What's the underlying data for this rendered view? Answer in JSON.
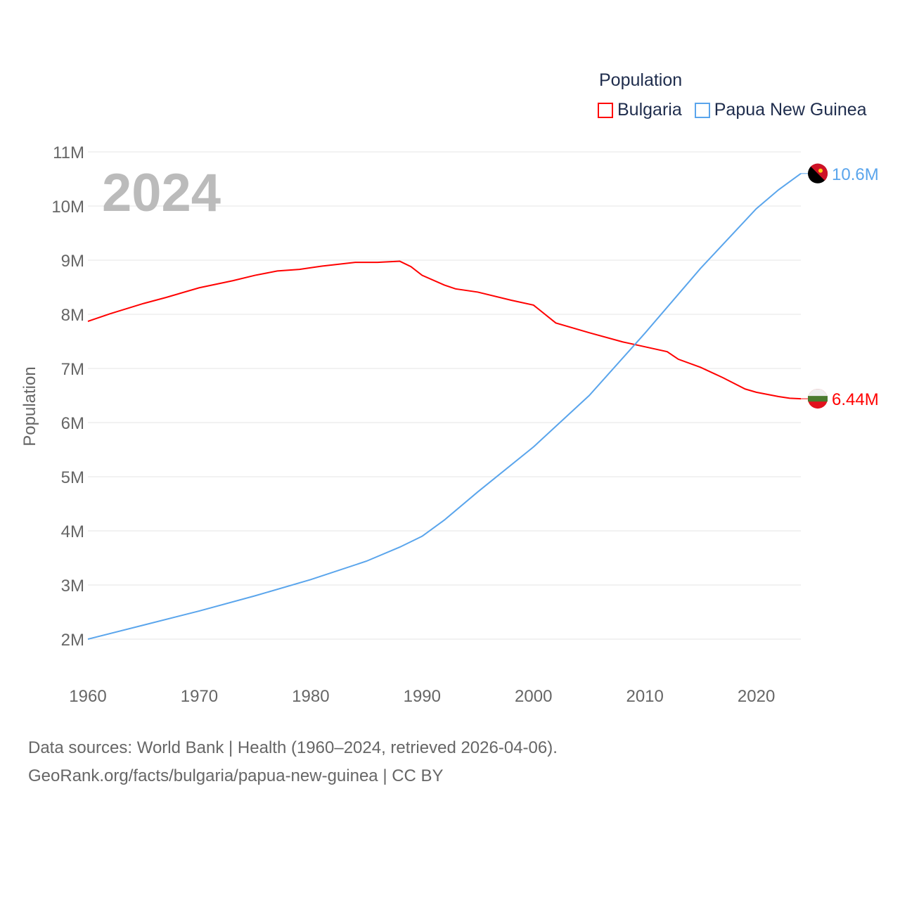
{
  "chart_data": {
    "type": "line",
    "year_label": "2024",
    "legend_title": "Population",
    "ylabel": "Population",
    "xlim": [
      1960,
      2024
    ],
    "ylim": [
      2000000,
      11000000
    ],
    "xticks": [
      1960,
      1970,
      1980,
      1990,
      2000,
      2010,
      2020
    ],
    "yticks": [
      {
        "v": 2000000,
        "label": "2M"
      },
      {
        "v": 3000000,
        "label": "3M"
      },
      {
        "v": 4000000,
        "label": "4M"
      },
      {
        "v": 5000000,
        "label": "5M"
      },
      {
        "v": 6000000,
        "label": "6M"
      },
      {
        "v": 7000000,
        "label": "7M"
      },
      {
        "v": 8000000,
        "label": "8M"
      },
      {
        "v": 9000000,
        "label": "9M"
      },
      {
        "v": 10000000,
        "label": "10M"
      },
      {
        "v": 11000000,
        "label": "11M"
      }
    ],
    "series": [
      {
        "name": "Bulgaria",
        "color": "#ff0000",
        "end_label": "6.44M",
        "x": [
          1960,
          1962,
          1965,
          1967,
          1970,
          1973,
          1975,
          1977,
          1979,
          1981,
          1984,
          1986,
          1988,
          1989,
          1990,
          1992,
          1993,
          1995,
          1998,
          2000,
          2002,
          2005,
          2008,
          2010,
          2012,
          2013,
          2015,
          2017,
          2019,
          2020,
          2022,
          2023,
          2024
        ],
        "y": [
          7.87,
          8.01,
          8.2,
          8.31,
          8.49,
          8.62,
          8.72,
          8.8,
          8.83,
          8.89,
          8.96,
          8.96,
          8.98,
          8.88,
          8.72,
          8.54,
          8.47,
          8.41,
          8.26,
          8.17,
          7.84,
          7.66,
          7.49,
          7.4,
          7.31,
          7.17,
          7.02,
          6.83,
          6.62,
          6.56,
          6.48,
          6.45,
          6.44
        ]
      },
      {
        "name": "Papua New Guinea",
        "color": "#5aa5ec",
        "end_label": "10.6M",
        "x": [
          1960,
          1965,
          1970,
          1975,
          1980,
          1985,
          1988,
          1990,
          1992,
          1995,
          2000,
          2005,
          2010,
          2015,
          2020,
          2022,
          2024
        ],
        "y": [
          2.0,
          2.26,
          2.52,
          2.8,
          3.1,
          3.44,
          3.7,
          3.9,
          4.2,
          4.72,
          5.55,
          6.5,
          7.65,
          8.85,
          9.95,
          10.3,
          10.6
        ]
      }
    ]
  },
  "footer": {
    "line1": "Data sources: World Bank | Health (1960–2024, retrieved 2026-04-06).",
    "line2": "GeoRank.org/facts/bulgaria/papua-new-guinea | CC BY"
  }
}
